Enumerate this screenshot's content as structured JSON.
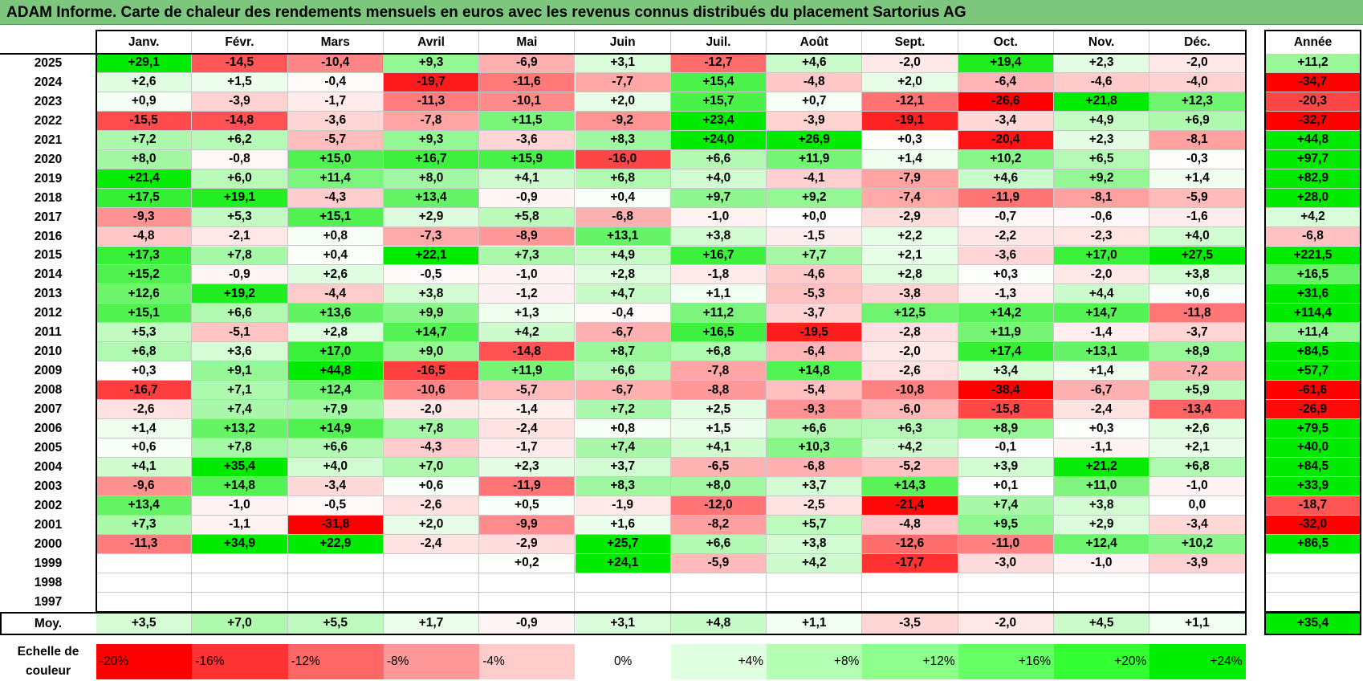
{
  "title": "ADAM Informe. Carte de chaleur des rendements mensuels en euros avec les revenus connus distribués du placement Sartorius AG",
  "chart_data": {
    "type": "heatmap",
    "title": "ADAM Informe. Carte de chaleur des rendements mensuels en euros avec les revenus connus distribués du placement Sartorius AG",
    "columns": [
      "Janv.",
      "Févr.",
      "Mars",
      "Avril",
      "Mai",
      "Juin",
      "Juil.",
      "Août",
      "Sept.",
      "Oct.",
      "Nov.",
      "Déc."
    ],
    "annual_header": "Année",
    "rows": [
      {
        "year": "2025",
        "values": [
          "+29,1",
          "-14,5",
          "-10,4",
          "+9,3",
          "-6,9",
          "+3,1",
          "-12,7",
          "+4,6",
          "-2,0",
          "+19,4",
          "+2,3",
          "-2,0"
        ],
        "annual": "+11,2"
      },
      {
        "year": "2024",
        "values": [
          "+2,6",
          "+1,5",
          "-0,4",
          "-19,7",
          "-11,6",
          "-7,7",
          "+15,4",
          "-4,8",
          "+2,0",
          "-6,4",
          "-4,6",
          "-4,0"
        ],
        "annual": "-34,7"
      },
      {
        "year": "2023",
        "values": [
          "+0,9",
          "-3,9",
          "-1,7",
          "-11,3",
          "-10,1",
          "+2,0",
          "+15,7",
          "+0,7",
          "-12,1",
          "-26,6",
          "+21,8",
          "+12,3"
        ],
        "annual": "-20,3"
      },
      {
        "year": "2022",
        "values": [
          "-15,5",
          "-14,8",
          "-3,6",
          "-7,8",
          "+11,5",
          "-9,2",
          "+23,4",
          "-3,9",
          "-19,1",
          "-3,4",
          "+4,9",
          "+6,9"
        ],
        "annual": "-32,7"
      },
      {
        "year": "2021",
        "values": [
          "+7,2",
          "+6,2",
          "-5,7",
          "+9,3",
          "-3,6",
          "+8,3",
          "+24,0",
          "+26,9",
          "+0,3",
          "-20,4",
          "+2,3",
          "-8,1"
        ],
        "annual": "+44,8"
      },
      {
        "year": "2020",
        "values": [
          "+8,0",
          "-0,8",
          "+15,0",
          "+16,7",
          "+15,9",
          "-16,0",
          "+6,6",
          "+11,9",
          "+1,4",
          "+10,2",
          "+6,5",
          "-0,3"
        ],
        "annual": "+97,7"
      },
      {
        "year": "2019",
        "values": [
          "+21,4",
          "+6,0",
          "+11,4",
          "+8,0",
          "+4,1",
          "+6,8",
          "+4,0",
          "-4,1",
          "-7,9",
          "+4,6",
          "+9,2",
          "+1,4"
        ],
        "annual": "+82,9"
      },
      {
        "year": "2018",
        "values": [
          "+17,5",
          "+19,1",
          "-4,3",
          "+13,4",
          "-0,9",
          "+0,4",
          "+9,7",
          "+9,2",
          "-7,4",
          "-11,9",
          "-8,1",
          "-5,9"
        ],
        "annual": "+28,0"
      },
      {
        "year": "2017",
        "values": [
          "-9,3",
          "+5,3",
          "+15,1",
          "+2,9",
          "+5,8",
          "-6,8",
          "-1,0",
          "+0,0",
          "-2,9",
          "-0,7",
          "-0,6",
          "-1,6"
        ],
        "annual": "+4,2"
      },
      {
        "year": "2016",
        "values": [
          "-4,8",
          "-2,1",
          "+0,8",
          "-7,3",
          "-8,9",
          "+13,1",
          "+3,8",
          "-1,5",
          "+2,2",
          "-2,2",
          "-2,3",
          "+4,0"
        ],
        "annual": "-6,8"
      },
      {
        "year": "2015",
        "values": [
          "+17,3",
          "+7,8",
          "+0,4",
          "+22,1",
          "+7,3",
          "+4,9",
          "+16,7",
          "+7,7",
          "+2,1",
          "-3,6",
          "+17,0",
          "+27,5"
        ],
        "annual": "+221,5"
      },
      {
        "year": "2014",
        "values": [
          "+15,2",
          "-0,9",
          "+2,6",
          "-0,5",
          "-1,0",
          "+2,8",
          "-1,8",
          "-4,6",
          "+2,8",
          "+0,3",
          "-2,0",
          "+3,8"
        ],
        "annual": "+16,5"
      },
      {
        "year": "2013",
        "values": [
          "+12,6",
          "+19,2",
          "-4,4",
          "+3,8",
          "-1,2",
          "+4,7",
          "+1,1",
          "-5,3",
          "-3,8",
          "-1,3",
          "+4,4",
          "+0,6"
        ],
        "annual": "+31,6"
      },
      {
        "year": "2012",
        "values": [
          "+15,1",
          "+6,6",
          "+13,6",
          "+9,9",
          "+1,3",
          "-0,4",
          "+11,2",
          "-3,7",
          "+12,5",
          "+14,2",
          "+14,7",
          "-11,8"
        ],
        "annual": "+114,4"
      },
      {
        "year": "2011",
        "values": [
          "+5,3",
          "-5,1",
          "+2,8",
          "+14,7",
          "+4,2",
          "-6,7",
          "+16,5",
          "-19,5",
          "-2,8",
          "+11,9",
          "-1,4",
          "-3,7"
        ],
        "annual": "+11,4"
      },
      {
        "year": "2010",
        "values": [
          "+6,8",
          "+3,6",
          "+17,0",
          "+9,0",
          "-14,8",
          "+8,7",
          "+6,8",
          "-6,4",
          "-2,0",
          "+17,4",
          "+13,1",
          "+8,9"
        ],
        "annual": "+84,5"
      },
      {
        "year": "2009",
        "values": [
          "+0,3",
          "+9,1",
          "+44,8",
          "-16,5",
          "+11,9",
          "+6,6",
          "-7,8",
          "+14,8",
          "-2,6",
          "+3,4",
          "+1,4",
          "-7,2"
        ],
        "annual": "+57,7"
      },
      {
        "year": "2008",
        "values": [
          "-16,7",
          "+7,1",
          "+12,4",
          "-10,6",
          "-5,7",
          "-6,7",
          "-8,8",
          "-5,4",
          "-10,8",
          "-38,4",
          "-6,7",
          "+5,9"
        ],
        "annual": "-61,6"
      },
      {
        "year": "2007",
        "values": [
          "-2,6",
          "+7,4",
          "+7,9",
          "-2,0",
          "-1,4",
          "+7,2",
          "+2,5",
          "-9,3",
          "-6,0",
          "-15,8",
          "-2,4",
          "-13,4"
        ],
        "annual": "-26,9"
      },
      {
        "year": "2006",
        "values": [
          "+1,4",
          "+13,2",
          "+14,9",
          "+7,8",
          "-2,4",
          "+0,8",
          "+1,5",
          "+6,6",
          "+6,3",
          "+8,9",
          "+0,3",
          "+2,6"
        ],
        "annual": "+79,5"
      },
      {
        "year": "2005",
        "values": [
          "+0,6",
          "+7,8",
          "+6,6",
          "-4,3",
          "-1,7",
          "+7,4",
          "+4,1",
          "+10,3",
          "+4,2",
          "-0,1",
          "-1,1",
          "+2,1"
        ],
        "annual": "+40,0"
      },
      {
        "year": "2004",
        "values": [
          "+4,1",
          "+35,4",
          "+4,0",
          "+7,0",
          "+2,3",
          "+3,7",
          "-6,5",
          "-6,8",
          "-5,2",
          "+3,9",
          "+21,2",
          "+6,8"
        ],
        "annual": "+84,5"
      },
      {
        "year": "2003",
        "values": [
          "-9,6",
          "+14,8",
          "-3,4",
          "+0,6",
          "-11,9",
          "+8,3",
          "+8,0",
          "+3,7",
          "+14,3",
          "+0,1",
          "+11,0",
          "-1,0"
        ],
        "annual": "+33,9"
      },
      {
        "year": "2002",
        "values": [
          "+13,4",
          "-1,0",
          "-0,5",
          "-2,6",
          "+0,5",
          "-1,9",
          "-12,0",
          "-2,5",
          "-21,4",
          "+7,4",
          "+3,8",
          "0,0"
        ],
        "annual": "-18,7"
      },
      {
        "year": "2001",
        "values": [
          "+7,3",
          "-1,1",
          "-31,8",
          "+2,0",
          "-9,9",
          "+1,6",
          "-8,2",
          "+5,7",
          "-4,8",
          "+9,5",
          "+2,9",
          "-3,4"
        ],
        "annual": "-32,0"
      },
      {
        "year": "2000",
        "values": [
          "-11,3",
          "+34,9",
          "+22,9",
          "-2,4",
          "-2,9",
          "+25,7",
          "+6,6",
          "+3,8",
          "-12,6",
          "-11,0",
          "+12,4",
          "+10,2"
        ],
        "annual": "+86,5"
      },
      {
        "year": "1999",
        "values": [
          "",
          "",
          "",
          "",
          "+0,2",
          "+24,1",
          "-5,9",
          "+4,2",
          "-17,7",
          "-3,0",
          "-1,0",
          "-3,9"
        ],
        "annual": ""
      },
      {
        "year": "1998",
        "values": [
          "",
          "",
          "",
          "",
          "",
          "",
          "",
          "",
          "",
          "",
          "",
          ""
        ],
        "annual": ""
      },
      {
        "year": "1997",
        "values": [
          "",
          "",
          "",
          "",
          "",
          "",
          "",
          "",
          "",
          "",
          "",
          ""
        ],
        "annual": ""
      }
    ],
    "average": {
      "label": "Moy.",
      "values": [
        "+3,5",
        "+7,0",
        "+5,5",
        "+1,7",
        "-0,9",
        "+3,1",
        "+4,8",
        "+1,1",
        "-3,5",
        "-2,0",
        "+4,5",
        "+1,1"
      ],
      "annual": "+35,4"
    },
    "color_scale": {
      "label_line1": "Echelle de",
      "label_line2": "couleur",
      "steps": [
        {
          "label": "-20%",
          "value": -20,
          "color": "#ff0000"
        },
        {
          "label": "-16%",
          "value": -16,
          "color": "#ff3333"
        },
        {
          "label": "-12%",
          "value": -12,
          "color": "#ff6666"
        },
        {
          "label": "-8%",
          "value": -8,
          "color": "#ff9999"
        },
        {
          "label": "-4%",
          "value": -4,
          "color": "#ffcccc"
        },
        {
          "label": "0%",
          "value": 0,
          "color": "#ffffff"
        },
        {
          "label": "+4%",
          "value": 4,
          "color": "#e0ffe0"
        },
        {
          "label": "+8%",
          "value": 8,
          "color": "#b3ffb3"
        },
        {
          "label": "+12%",
          "value": 12,
          "color": "#8cff8c"
        },
        {
          "label": "+16%",
          "value": 16,
          "color": "#66ff66"
        },
        {
          "label": "+20%",
          "value": 20,
          "color": "#33ff33"
        },
        {
          "label": "+24%",
          "value": 24,
          "color": "#00ee00"
        }
      ]
    }
  }
}
